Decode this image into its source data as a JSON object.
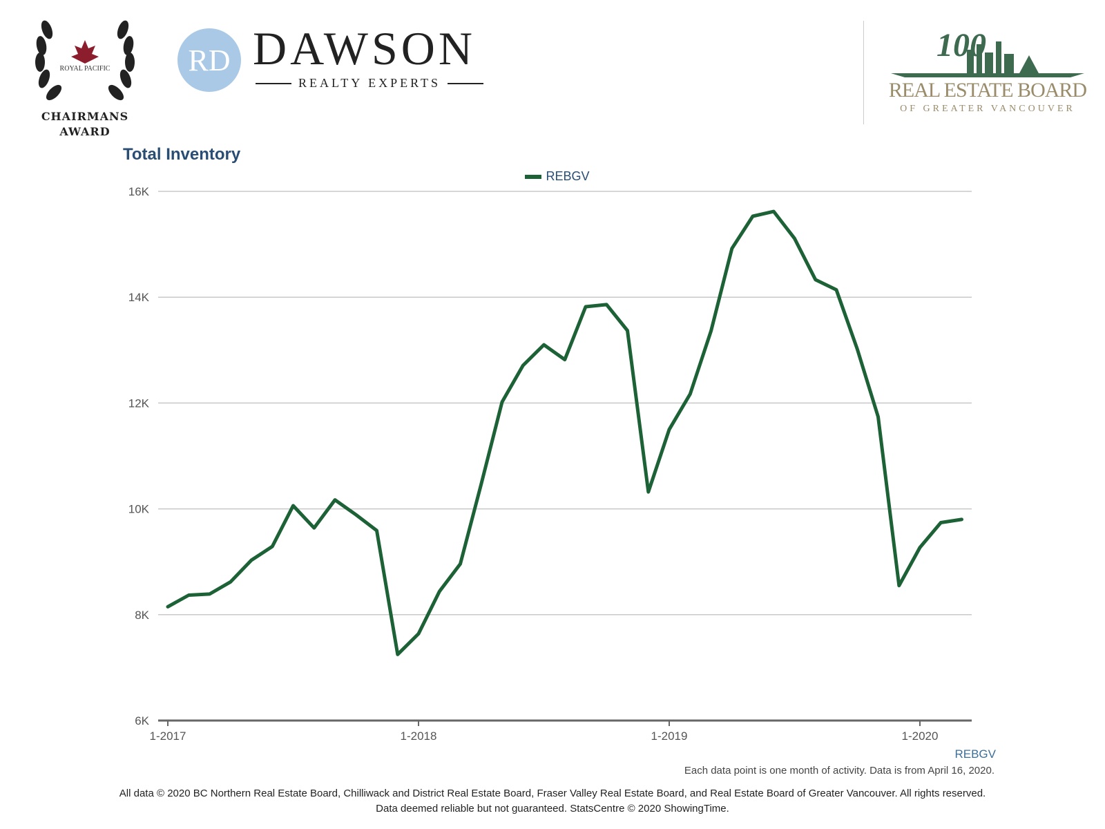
{
  "header": {
    "award_top": "ROYAL PACIFIC",
    "award_line1": "CHAIRMANS",
    "award_line2": "AWARD",
    "dawson_title": "DAWSON",
    "dawson_sub": "REALTY EXPERTS",
    "reb_title": "REAL ESTATE BOARD",
    "reb_sub": "OF GREATER VANCOUVER",
    "reb_hundred": "100"
  },
  "colors": {
    "series": "#1d6136",
    "title": "#2a4d73",
    "grid": "#c8c8c8",
    "axis": "#666666"
  },
  "chart_data": {
    "type": "line",
    "title": "Total Inventory",
    "xlabel": "",
    "ylabel": "",
    "x_ticks": [
      "1-2017",
      "1-2018",
      "1-2019",
      "1-2020"
    ],
    "y_ticks": [
      "6K",
      "8K",
      "10K",
      "12K",
      "14K",
      "16K"
    ],
    "ylim": [
      6000,
      16000
    ],
    "grid": true,
    "legend": "top-center",
    "series_tag": "REBGV",
    "series": [
      {
        "name": "REBGV",
        "x": [
          "2017-01",
          "2017-02",
          "2017-03",
          "2017-04",
          "2017-05",
          "2017-06",
          "2017-07",
          "2017-08",
          "2017-09",
          "2017-10",
          "2017-11",
          "2017-12",
          "2018-01",
          "2018-02",
          "2018-03",
          "2018-04",
          "2018-05",
          "2018-06",
          "2018-07",
          "2018-08",
          "2018-09",
          "2018-10",
          "2018-11",
          "2018-12",
          "2019-01",
          "2019-02",
          "2019-03",
          "2019-04",
          "2019-05",
          "2019-06",
          "2019-07",
          "2019-08",
          "2019-09",
          "2019-10",
          "2019-11",
          "2019-12",
          "2020-01",
          "2020-02",
          "2020-03",
          "2020-04"
        ],
        "values": [
          8150,
          8370,
          8390,
          8620,
          9030,
          9290,
          10060,
          9640,
          10170,
          9890,
          9590,
          7250,
          7640,
          8440,
          8960,
          10470,
          12020,
          12710,
          13100,
          12820,
          13820,
          13860,
          13370,
          10320,
          11500,
          12170,
          13360,
          14920,
          15530,
          15620,
          15110,
          14330,
          14140,
          13020,
          11740,
          8550,
          9270,
          9740,
          9800,
          null
        ]
      }
    ]
  },
  "footer": {
    "note": "Each data point is one month of activity. Data is from April 16, 2020.",
    "src1": "All data © 2020 BC Northern Real Estate Board, Chilliwack and District Real Estate Board, Fraser Valley Real Estate Board, and Real Estate Board of Greater Vancouver. All rights reserved.",
    "src2": "Data deemed reliable but not guaranteed. StatsCentre © 2020 ShowingTime."
  }
}
